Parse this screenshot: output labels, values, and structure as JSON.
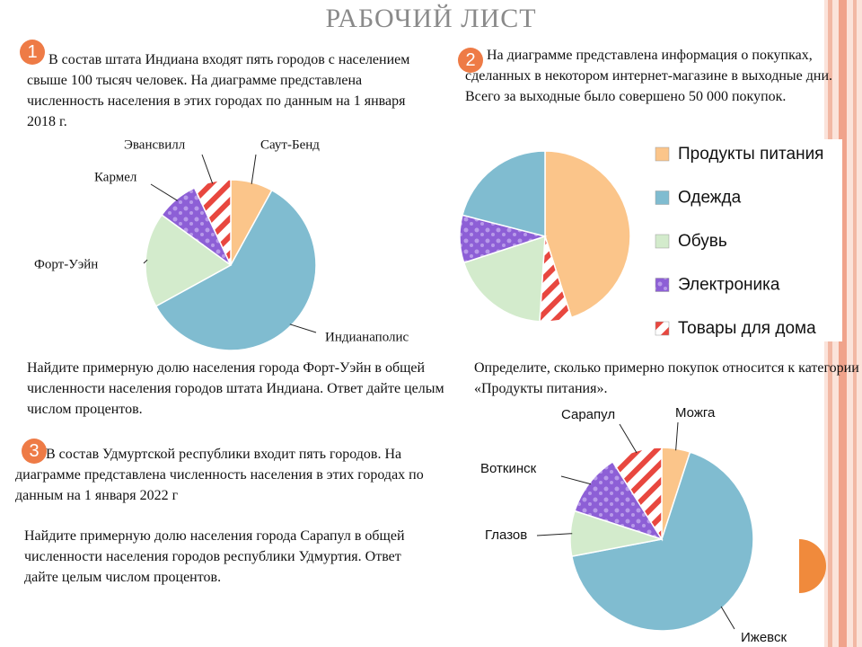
{
  "title": "РАБОЧИЙ ЛИСТ",
  "tasks": [
    {
      "number": "1",
      "text": "В состав штата Индиана входят пять городов с населением свыше 100 тысяч человек. На диаграмме представлена численность населения в этих городах по данным на 1 января 2018 г.",
      "question": "Найдите примерную долю населения города Форт-Уэйн в общей численности населения городов штата Индиана. Ответ дайте целым числом процентов."
    },
    {
      "number": "2",
      "text": "На диаграмме представлена информация о покупках, сделанных в некотором интернет-магазине в выходные дни. Всего за выходные было совершено 50 000 покупок.",
      "question": "Определите, сколько примерно покупок относится к категории «Продукты питания»."
    },
    {
      "number": "3",
      "text": "В состав Удмуртской республики входит пять городов. На диаграмме представлена численность населения в этих городах по данным на 1 января 2022 г",
      "question": "Найдите примерную долю населения города Сарапул в общей численности населения городов республики Удмуртия. Ответ дайте целым числом процентов."
    }
  ],
  "chart_data": [
    {
      "type": "pie",
      "categories": [
        "Саут-Бенд",
        "Индианаполис",
        "Форт-Уэйн",
        "Кармел",
        "Эвансвилл"
      ],
      "values": [
        8,
        59,
        18,
        8,
        7
      ],
      "colors": [
        "#fbc58a",
        "#80bcd0",
        "#d3ebcc",
        "#8d5fd6",
        "#e8473f"
      ],
      "fills": [
        "solid",
        "solid",
        "solid",
        "texture",
        "stripes"
      ],
      "legend": false
    },
    {
      "type": "pie",
      "categories": [
        "Продукты питания",
        "Одежда",
        "Обувь",
        "Электроника",
        "Товары для дома"
      ],
      "values": [
        45,
        21,
        19,
        9,
        6
      ],
      "colors": [
        "#fbc58a",
        "#80bcd0",
        "#d3ebcc",
        "#8d5fd6",
        "#e8473f"
      ],
      "fills": [
        "solid",
        "solid",
        "solid",
        "texture",
        "stripes"
      ],
      "legend": true
    },
    {
      "type": "pie",
      "categories": [
        "Можга",
        "Ижевск",
        "Глазов",
        "Воткинск",
        "Сарапул"
      ],
      "values": [
        5,
        67,
        8,
        11,
        9
      ],
      "colors": [
        "#fbc58a",
        "#80bcd0",
        "#d3ebcc",
        "#8d5fd6",
        "#e8473f"
      ],
      "fills": [
        "solid",
        "solid",
        "solid",
        "texture",
        "stripes"
      ],
      "legend": false
    }
  ]
}
